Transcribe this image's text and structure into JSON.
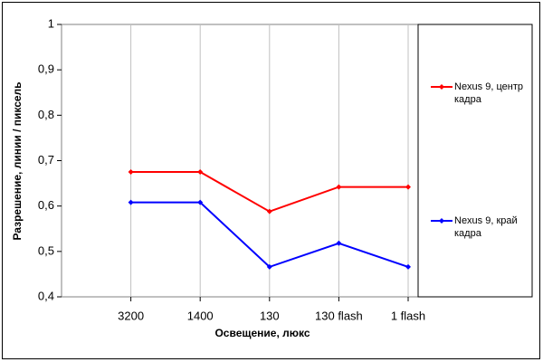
{
  "chart_data": {
    "type": "line",
    "categories": [
      "3200",
      "1400",
      "130",
      "130 flash",
      "1 flash"
    ],
    "series": [
      {
        "name": "Nexus 9, центр кадра",
        "color": "#ff0000",
        "values": [
          0.675,
          0.675,
          0.588,
          0.642,
          0.642
        ]
      },
      {
        "name": "Nexus 9, край кадра",
        "color": "#0000ff",
        "values": [
          0.608,
          0.608,
          0.466,
          0.518,
          0.466
        ]
      }
    ],
    "ylim": [
      0.4,
      1
    ],
    "yticks": [
      {
        "value": 0.4,
        "label": "0,4"
      },
      {
        "value": 0.5,
        "label": "0,5"
      },
      {
        "value": 0.6,
        "label": "0,6"
      },
      {
        "value": 0.7,
        "label": "0,7"
      },
      {
        "value": 0.8,
        "label": "0,8"
      },
      {
        "value": 0.9,
        "label": "0,9"
      },
      {
        "value": 1,
        "label": "1"
      }
    ],
    "x_label": "Освещение, люкс",
    "y_label": "Разрешение, линии / пиксель",
    "legend": "right",
    "grid": true
  }
}
